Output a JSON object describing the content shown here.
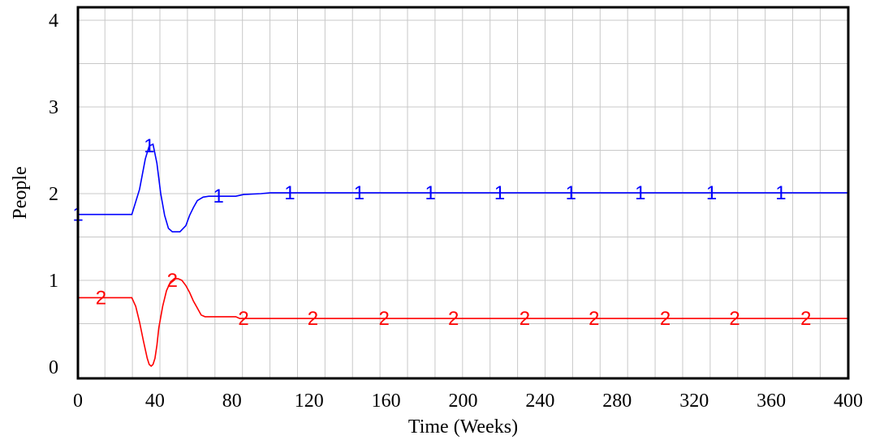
{
  "chart_data": {
    "type": "line",
    "xlabel": "Time (Weeks)",
    "ylabel": "People",
    "xlim": [
      0,
      400
    ],
    "ylim": [
      0,
      4
    ],
    "x_ticks": [
      "0",
      "40",
      "80",
      "120",
      "160",
      "200",
      "240",
      "280",
      "320",
      "360",
      "400"
    ],
    "y_ticks": [
      "0",
      "1",
      "2",
      "3",
      "4"
    ],
    "grid": true,
    "series": [
      {
        "marker": "1",
        "color": "#0000ff",
        "x": [
          0,
          28,
          32,
          35,
          37,
          39,
          41,
          43,
          45,
          47,
          49,
          51,
          53,
          56,
          58,
          60,
          62,
          65,
          68,
          73,
          82,
          86,
          95,
          100,
          400
        ],
        "y": [
          1.76,
          1.76,
          2.05,
          2.4,
          2.55,
          2.57,
          2.35,
          2.0,
          1.75,
          1.6,
          1.56,
          1.56,
          1.56,
          1.63,
          1.75,
          1.84,
          1.92,
          1.96,
          1.97,
          1.97,
          1.97,
          1.99,
          2.0,
          2.01,
          2.01
        ],
        "marker_x": [
          0,
          37,
          73,
          110,
          146,
          183,
          219,
          256,
          292,
          329,
          365
        ]
      },
      {
        "marker": "2",
        "color": "#ff0000",
        "x": [
          0,
          28,
          30,
          32,
          34,
          36,
          37,
          38,
          39,
          40,
          41,
          42,
          44,
          46,
          48,
          50,
          52,
          54,
          56,
          58,
          60,
          62,
          64,
          66,
          68,
          82,
          84,
          400
        ],
        "y": [
          0.8,
          0.8,
          0.7,
          0.52,
          0.3,
          0.1,
          0.03,
          0.01,
          0.03,
          0.1,
          0.25,
          0.45,
          0.7,
          0.88,
          0.98,
          1.02,
          1.02,
          1.0,
          0.94,
          0.86,
          0.76,
          0.68,
          0.6,
          0.58,
          0.58,
          0.58,
          0.56,
          0.56
        ],
        "marker_x": [
          12,
          49,
          86,
          122,
          159,
          195,
          232,
          268,
          305,
          341,
          378
        ]
      }
    ]
  }
}
